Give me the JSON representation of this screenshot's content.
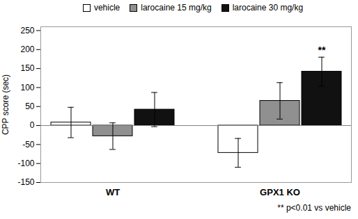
{
  "chart_data": {
    "type": "bar",
    "categories": [
      "WT",
      "GPX1 KO"
    ],
    "series": [
      {
        "name": "vehicle",
        "color": "#ffffff",
        "values": [
          8,
          -72
        ],
        "errors": [
          40,
          38
        ]
      },
      {
        "name": "larocaine 15 mg/kg",
        "color": "#909090",
        "values": [
          -28,
          65
        ],
        "errors": [
          35,
          48
        ]
      },
      {
        "name": "larocaine 30 mg/kg",
        "color": "#111111",
        "values": [
          42,
          142
        ],
        "errors": [
          45,
          38
        ]
      }
    ],
    "ylabel": "CPP score (sec)",
    "ylim": [
      -150,
      260
    ],
    "yticks": [
      -150,
      -100,
      -50,
      0,
      50,
      100,
      150,
      200,
      250
    ],
    "grid": false,
    "legend": "top",
    "annotations": [
      {
        "text": "**",
        "category": "GPX1 KO",
        "series": "larocaine 30 mg/kg"
      }
    ],
    "caption": "** p<0.01 vs vehicle"
  }
}
